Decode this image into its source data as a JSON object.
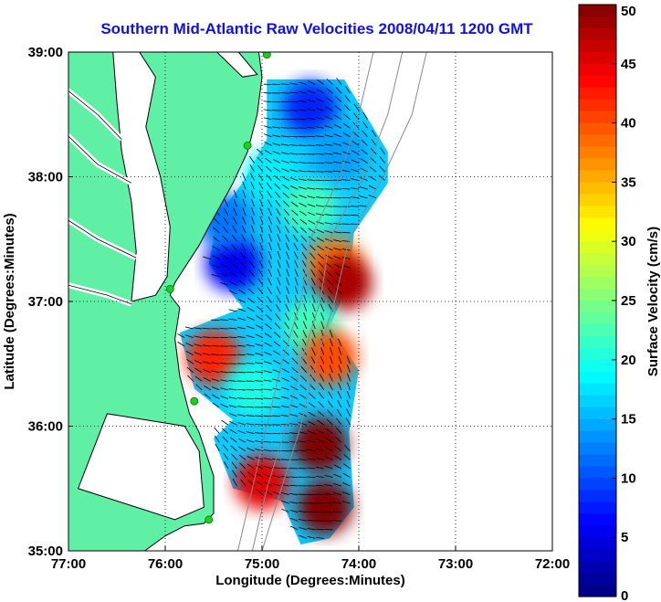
{
  "title": "Southern Mid-Atlantic Raw Velocities 2008/04/11 1200 GMT",
  "map": {
    "xlabel": "Longitude (Degrees:Minutes)",
    "ylabel": "Latitude (Degrees:Minutes)",
    "x_ticks": [
      "77:00",
      "76:00",
      "75:00",
      "74:00",
      "73:00",
      "72:00"
    ],
    "y_ticks": [
      "39:00",
      "38:00",
      "37:00",
      "36:00",
      "35:00"
    ],
    "lon_range": [
      -77,
      -72
    ],
    "lat_range": [
      35,
      39
    ],
    "land_color": "#5ff0a6",
    "grid": "dotted"
  },
  "colorbar": {
    "label": "Surface Velocity (cm/s)",
    "range": [
      0,
      50
    ],
    "ticks": [
      "50",
      "45",
      "40",
      "35",
      "30",
      "25",
      "20",
      "15",
      "10",
      "5",
      "0"
    ]
  },
  "chart_data": {
    "type": "heatmap",
    "quantity": "Surface Velocity",
    "units": "cm/s",
    "xlim": [
      -77,
      -72
    ],
    "ylim": [
      35,
      39
    ],
    "clim": [
      0,
      50
    ],
    "regions": [
      {
        "lon": -74.5,
        "lat": 38.55,
        "value": 8
      },
      {
        "lon": -74.2,
        "lat": 38.2,
        "value": 14
      },
      {
        "lon": -74.9,
        "lat": 38.0,
        "value": 18
      },
      {
        "lon": -74.5,
        "lat": 37.75,
        "value": 22
      },
      {
        "lon": -74.25,
        "lat": 37.3,
        "value": 38
      },
      {
        "lon": -74.15,
        "lat": 37.15,
        "value": 48
      },
      {
        "lon": -75.3,
        "lat": 37.3,
        "value": 6
      },
      {
        "lon": -75.4,
        "lat": 37.65,
        "value": 12
      },
      {
        "lon": -74.5,
        "lat": 36.8,
        "value": 22
      },
      {
        "lon": -74.3,
        "lat": 36.55,
        "value": 40
      },
      {
        "lon": -75.5,
        "lat": 36.55,
        "value": 42
      },
      {
        "lon": -75.1,
        "lat": 36.3,
        "value": 20
      },
      {
        "lon": -74.4,
        "lat": 35.85,
        "value": 50
      },
      {
        "lon": -75.0,
        "lat": 35.55,
        "value": 45
      },
      {
        "lon": -74.35,
        "lat": 35.35,
        "value": 50
      }
    ],
    "stations": [
      {
        "lon": -74.95,
        "lat": 38.98
      },
      {
        "lon": -75.15,
        "lat": 38.25
      },
      {
        "lon": -75.95,
        "lat": 37.1
      },
      {
        "lon": -75.7,
        "lat": 36.2
      },
      {
        "lon": -75.55,
        "lat": 35.25
      }
    ]
  }
}
